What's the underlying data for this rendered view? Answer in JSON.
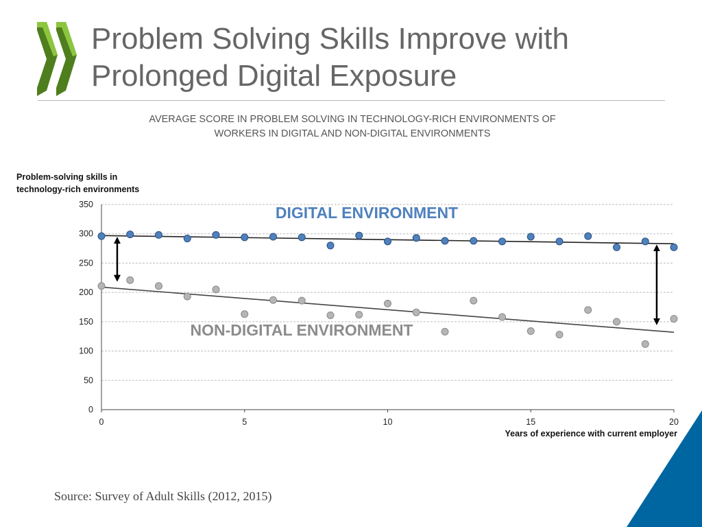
{
  "slide": {
    "title_line1": "Problem Solving Skills Improve with",
    "title_line2": "Prolonged Digital Exposure",
    "subtitle_line1": "AVERAGE SCORE IN PROBLEM SOLVING IN TECHNOLOGY-RICH ENVIRONMENTS OF",
    "subtitle_line2": "WORKERS IN DIGITAL AND NON-DIGITAL ENVIRONMENTS",
    "source": "Source: Survey of Adult Skills (2012, 2015)"
  },
  "colors": {
    "title": "#666666",
    "logo_green": "#8cc63f",
    "logo_dark": "#4f7e1f",
    "digital": "#4f81bd",
    "non_digital": "#b5b5b5",
    "accent_blue": "#0066a1"
  },
  "chart_data": {
    "type": "scatter",
    "ylabel_line1": "Problem-solving skills in",
    "ylabel_line2": "technology-rich environments",
    "xlabel": "Years of experience with current employer",
    "xlim": [
      0,
      20
    ],
    "ylim": [
      0,
      350
    ],
    "xticks": [
      "0",
      "5",
      "10",
      "15",
      "20"
    ],
    "yticks": [
      "0",
      "50",
      "100",
      "150",
      "200",
      "250",
      "300",
      "350"
    ],
    "grid": "horizontal dashed",
    "annotations": {
      "digital": "DIGITAL ENVIRONMENT",
      "non_digital": "NON-DIGITAL ENVIRONMENT"
    },
    "series": [
      {
        "key": "digital",
        "color": "#4f81bd",
        "x": [
          0,
          1,
          2,
          3,
          4,
          5,
          6,
          7,
          8,
          9,
          10,
          11,
          12,
          13,
          14,
          15,
          16,
          17,
          18,
          19,
          20
        ],
        "y": [
          296,
          299,
          298,
          292,
          298,
          294,
          295,
          294,
          280,
          297,
          287,
          293,
          288,
          288,
          287,
          295,
          287,
          296,
          277,
          287,
          277
        ],
        "trend": [
          297,
          283
        ]
      },
      {
        "key": "non_digital",
        "color": "#b5b5b5",
        "x": [
          0,
          1,
          2,
          3,
          4,
          5,
          6,
          7,
          8,
          9,
          10,
          11,
          12,
          13,
          14,
          15,
          16,
          17,
          18,
          19,
          20
        ],
        "y": [
          211,
          221,
          211,
          193,
          205,
          163,
          187,
          186,
          161,
          162,
          181,
          166,
          133,
          186,
          158,
          134,
          128,
          170,
          150,
          112,
          155
        ],
        "trend": [
          209,
          132
        ]
      }
    ],
    "arrows": [
      {
        "x": 0.55,
        "from": 296,
        "to": 217
      },
      {
        "x": 19.4,
        "from": 283,
        "to": 143
      }
    ]
  }
}
